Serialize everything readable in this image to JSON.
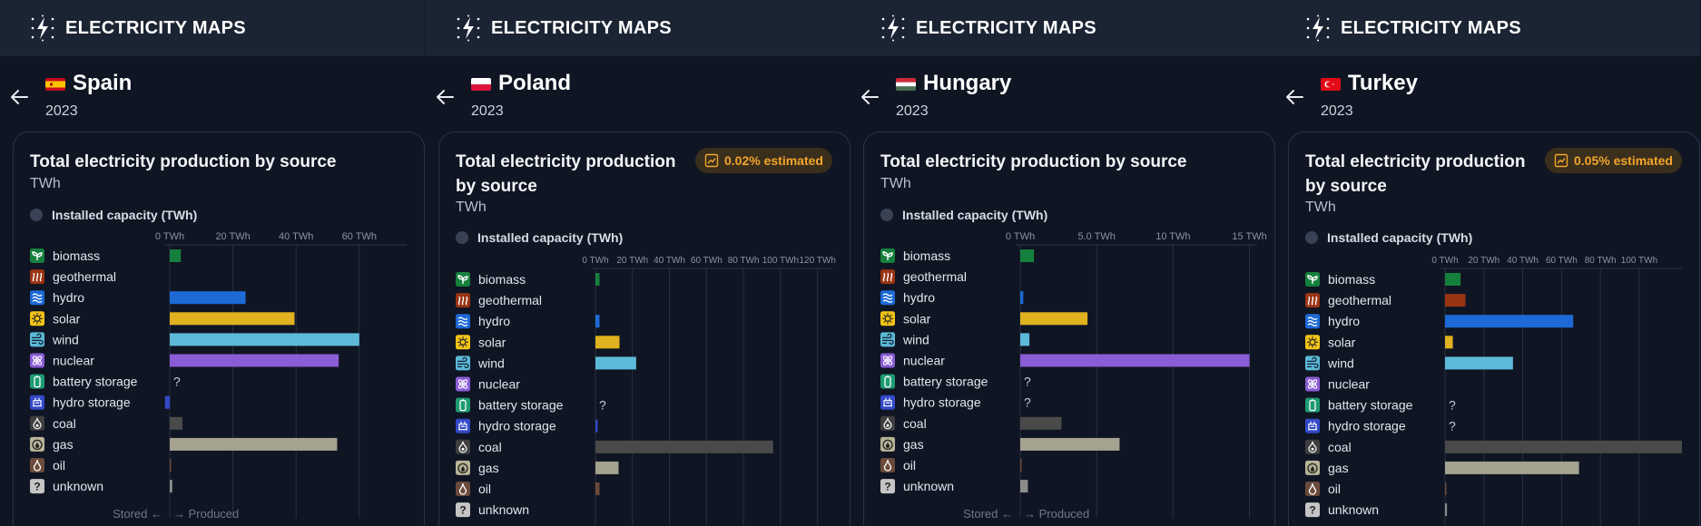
{
  "app": {
    "brand": "ELECTRICITY MAPS"
  },
  "colors": {
    "biomass": "#15803d",
    "geothermal": "#9a3412",
    "hydro": "#1d6ad6",
    "solar": "#e0b21f",
    "wind": "#5db9d8",
    "nuclear": "#8a5cd6",
    "battery storage": "#1e9b72",
    "hydro storage": "#3249c8",
    "coal": "#4a4a4a",
    "gas": "#a6a290",
    "oil": "#6b4a3b",
    "unknown": "#8c8c8c"
  },
  "sources": [
    "biomass",
    "geothermal",
    "hydro",
    "solar",
    "wind",
    "nuclear",
    "battery storage",
    "hydro storage",
    "coal",
    "gas",
    "oil",
    "unknown"
  ],
  "labels": {
    "installed_capacity": "Installed capacity (TWh)",
    "stored": "Stored",
    "produced": "Produced",
    "unit": "TWh",
    "unknown_value": "?"
  },
  "panels": [
    {
      "country": "Spain",
      "flag": "spain",
      "year": "2023",
      "title_lines": [
        "Total electricity production by source"
      ],
      "estimated": "",
      "show_footer": true,
      "chart_data": {
        "type": "bar",
        "orientation": "horizontal",
        "unit": "TWh",
        "ticks": [
          0,
          20,
          40,
          60
        ],
        "tick_labels": [
          "0 TWh",
          "20 TWh",
          "40 TWh",
          "60 TWh"
        ],
        "xlim": [
          0,
          75
        ],
        "values": [
          3.5,
          0,
          24,
          39.5,
          60,
          53.5,
          null,
          -1.5,
          4,
          53,
          0.3,
          0.8
        ]
      }
    },
    {
      "country": "Poland",
      "flag": "poland",
      "year": "2023",
      "title_lines": [
        "Total electricity production",
        "by source"
      ],
      "estimated": "0.02% estimated",
      "show_footer": false,
      "chart_data": {
        "type": "bar",
        "orientation": "horizontal",
        "unit": "TWh",
        "ticks": [
          0,
          20,
          40,
          60,
          80,
          100,
          120
        ],
        "tick_labels": [
          "0 TWh",
          "20 TWh",
          "40 TWh",
          "60 TWh",
          "80 TWh",
          "100 TWh",
          "120 TWh"
        ],
        "xlim": [
          0,
          128
        ],
        "values": [
          2.2,
          0,
          2.2,
          13,
          22,
          0,
          null,
          1.2,
          96,
          12.5,
          2.2,
          0
        ]
      }
    },
    {
      "country": "Hungary",
      "flag": "hungary",
      "year": "2023",
      "title_lines": [
        "Total electricity production by source"
      ],
      "estimated": "",
      "show_footer": true,
      "chart_data": {
        "type": "bar",
        "orientation": "horizontal",
        "unit": "TWh",
        "ticks": [
          0,
          5,
          10,
          15
        ],
        "tick_labels": [
          "0 TWh",
          "5.0 TWh",
          "10 TWh",
          "15 TWh"
        ],
        "xlim": [
          0,
          15.5
        ],
        "values": [
          0.9,
          0,
          0.2,
          4.4,
          0.6,
          15,
          null,
          null,
          2.7,
          6.5,
          0.04,
          0.5
        ]
      }
    },
    {
      "country": "Turkey",
      "flag": "turkey",
      "year": "2023",
      "title_lines": [
        "Total electricity production",
        "by source"
      ],
      "estimated": "0.05% estimated",
      "show_footer": false,
      "chart_data": {
        "type": "bar",
        "orientation": "horizontal",
        "unit": "TWh",
        "ticks": [
          0,
          20,
          40,
          60,
          80,
          100
        ],
        "tick_labels": [
          "0 TWh",
          "20 TWh",
          "40 TWh",
          "60 TWh",
          "80 TWh",
          "100 TWh"
        ],
        "xlim": [
          0,
          122
        ],
        "values": [
          8,
          10.5,
          66,
          4,
          35,
          0,
          null,
          null,
          122,
          69,
          0.5,
          1
        ]
      }
    }
  ]
}
